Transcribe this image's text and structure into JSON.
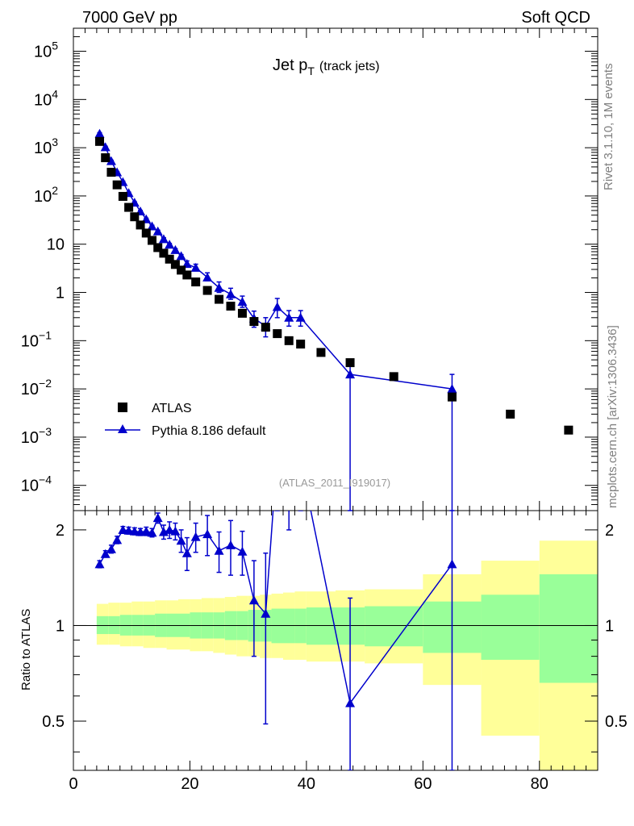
{
  "header": {
    "left": "7000 GeV pp",
    "right": "Soft QCD"
  },
  "side_text": {
    "top": "Rivet 3.1.10,  1M events",
    "bottom": "mcplots.cern.ch [arXiv:1306.3436]"
  },
  "chart_data": {
    "type": "scatter",
    "title_main": "Jet p",
    "title_sub": "T",
    "title_suffix": "(track jets)",
    "analysis_label": "(ATLAS_2011_I919017)",
    "x_range": [
      0,
      90
    ],
    "x_ticks": [
      "0",
      "20",
      "40",
      "60",
      "80"
    ],
    "main_panel": {
      "yscale": "log",
      "ylim": [
        3e-05,
        300000.0
      ],
      "ytick_labels": [
        {
          "base": "10",
          "exp": "5"
        },
        {
          "base": "10",
          "exp": "4"
        },
        {
          "base": "10",
          "exp": "3"
        },
        {
          "base": "10",
          "exp": "2"
        },
        {
          "base": "10",
          "exp": ""
        },
        {
          "base": "1",
          "exp": ""
        },
        {
          "base": "10",
          "exp": "−1"
        },
        {
          "base": "10",
          "exp": "−2"
        },
        {
          "base": "10",
          "exp": "−3"
        },
        {
          "base": "10",
          "exp": "−4"
        }
      ],
      "ytick_values": [
        100000,
        10000,
        1000,
        100,
        10,
        1,
        0.1,
        0.01,
        0.001,
        0.0001
      ],
      "legend": [
        "ATLAS",
        "Pythia 8.186 default"
      ]
    },
    "ratio_panel": {
      "ylabel": "Ratio to ATLAS",
      "ylim": [
        0.35,
        2.3
      ],
      "ytick_labels": [
        "2",
        "1",
        "0.5"
      ],
      "ytick_values": [
        2,
        1,
        0.5
      ]
    },
    "series": [
      {
        "name": "ATLAS",
        "marker": "square",
        "color": "#000000",
        "x": [
          4.5,
          5.5,
          6.5,
          7.5,
          8.5,
          9.5,
          10.5,
          11.5,
          12.5,
          13.5,
          14.5,
          15.5,
          16.5,
          17.5,
          18.5,
          19.5,
          21,
          23,
          25,
          27,
          29,
          31,
          33,
          35,
          37,
          39,
          42.5,
          47.5,
          55,
          65,
          75,
          85
        ],
        "values": [
          1350,
          620,
          310,
          170,
          98,
          58,
          37,
          25,
          17,
          12,
          8.5,
          6.5,
          4.9,
          3.8,
          2.9,
          2.3,
          1.65,
          1.1,
          0.72,
          0.52,
          0.37,
          0.25,
          0.19,
          0.14,
          0.1,
          0.085,
          0.057,
          0.035,
          0.018,
          0.0068,
          0.003,
          0.0014
        ]
      },
      {
        "name": "Pythia 8.186 default",
        "marker": "triangle",
        "color": "#0000cc",
        "x": [
          4.5,
          5.5,
          6.5,
          7.5,
          8.5,
          9.5,
          10.5,
          11.5,
          12.5,
          13.5,
          14.5,
          15.5,
          16.5,
          17.5,
          18.5,
          19.5,
          21,
          23,
          25,
          27,
          29,
          31,
          33,
          35,
          37,
          39,
          47.5,
          65
        ],
        "values": [
          1950,
          1030,
          530,
          310,
          195,
          115,
          73,
          48,
          33,
          23.5,
          18.5,
          12.8,
          9.8,
          7.6,
          5.7,
          3.9,
          3.25,
          2.05,
          1.25,
          0.92,
          0.64,
          0.29,
          0.2,
          0.5,
          0.3,
          0.3,
          0.02,
          0.01
        ],
        "y_err_low": [
          100,
          40,
          20,
          12,
          8,
          5,
          3,
          2,
          1.6,
          1.2,
          1,
          0.8,
          0.6,
          0.5,
          0.4,
          0.4,
          0.4,
          0.3,
          0.25,
          0.2,
          0.15,
          0.1,
          0.08,
          0.2,
          0.1,
          0.1,
          0.02,
          0.01
        ],
        "y_err_high": [
          100,
          40,
          20,
          12,
          8,
          5,
          3,
          2,
          1.6,
          1.2,
          1,
          0.8,
          0.6,
          0.5,
          0.4,
          0.6,
          0.6,
          0.5,
          0.4,
          0.3,
          0.2,
          0.12,
          0.1,
          0.25,
          0.12,
          0.12,
          0.02,
          0.01
        ]
      }
    ],
    "ratio": {
      "x": [
        4.5,
        5.5,
        6.5,
        7.5,
        8.5,
        9.5,
        10.5,
        11.5,
        12.5,
        13.5,
        14.5,
        15.5,
        16.5,
        17.5,
        18.5,
        19.5,
        21,
        23,
        25,
        27,
        29,
        31,
        33,
        35,
        37,
        39,
        47.5,
        65
      ],
      "values": [
        1.56,
        1.68,
        1.74,
        1.86,
        2.0,
        1.99,
        1.98,
        1.97,
        1.98,
        1.96,
        2.18,
        1.97,
        2.0,
        1.98,
        1.85,
        1.69,
        1.9,
        1.94,
        1.72,
        1.79,
        1.71,
        1.2,
        1.09,
        3.5,
        3.0,
        3.3,
        0.57,
        1.56
      ],
      "err": [
        0.04,
        0.04,
        0.05,
        0.05,
        0.05,
        0.05,
        0.05,
        0.05,
        0.06,
        0.06,
        0.08,
        0.1,
        0.12,
        0.12,
        0.15,
        0.2,
        0.2,
        0.28,
        0.25,
        0.35,
        0.27,
        0.4,
        0.6,
        1.2,
        1.0,
        1.0,
        0.65,
        1.6
      ]
    },
    "uncertainty_bands": {
      "edges": [
        4,
        6,
        8,
        10,
        12,
        14,
        16,
        18,
        20,
        22,
        24,
        26,
        28,
        30,
        32,
        34,
        36,
        38,
        40,
        45,
        50,
        60,
        70,
        80,
        90
      ],
      "green_low": [
        0.94,
        0.94,
        0.93,
        0.93,
        0.93,
        0.92,
        0.92,
        0.92,
        0.91,
        0.91,
        0.91,
        0.9,
        0.9,
        0.89,
        0.89,
        0.88,
        0.88,
        0.88,
        0.87,
        0.87,
        0.86,
        0.82,
        0.78,
        0.66
      ],
      "green_high": [
        1.07,
        1.07,
        1.08,
        1.08,
        1.08,
        1.09,
        1.09,
        1.09,
        1.1,
        1.1,
        1.1,
        1.11,
        1.11,
        1.12,
        1.12,
        1.13,
        1.13,
        1.13,
        1.14,
        1.14,
        1.15,
        1.19,
        1.25,
        1.45
      ],
      "yellow_low": [
        0.87,
        0.87,
        0.86,
        0.86,
        0.85,
        0.85,
        0.84,
        0.84,
        0.83,
        0.83,
        0.82,
        0.81,
        0.8,
        0.8,
        0.79,
        0.79,
        0.78,
        0.78,
        0.77,
        0.77,
        0.76,
        0.65,
        0.45,
        0.35
      ],
      "yellow_high": [
        1.17,
        1.18,
        1.18,
        1.19,
        1.19,
        1.2,
        1.2,
        1.21,
        1.21,
        1.22,
        1.22,
        1.23,
        1.24,
        1.24,
        1.25,
        1.26,
        1.27,
        1.28,
        1.28,
        1.29,
        1.3,
        1.45,
        1.6,
        1.85
      ]
    },
    "band_colors": {
      "green": "#99ff99",
      "yellow": "#ffff99"
    }
  }
}
